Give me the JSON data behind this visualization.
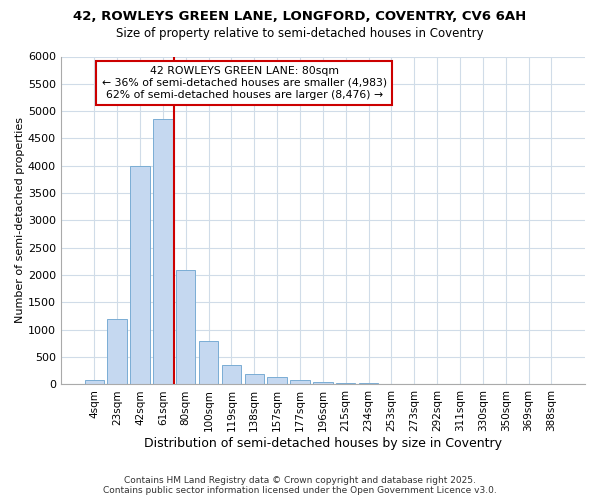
{
  "title_line1": "42, ROWLEYS GREEN LANE, LONGFORD, COVENTRY, CV6 6AH",
  "title_line2": "Size of property relative to semi-detached houses in Coventry",
  "xlabel": "Distribution of semi-detached houses by size in Coventry",
  "ylabel": "Number of semi-detached properties",
  "categories": [
    "4sqm",
    "23sqm",
    "42sqm",
    "61sqm",
    "80sqm",
    "100sqm",
    "119sqm",
    "138sqm",
    "157sqm",
    "177sqm",
    "196sqm",
    "215sqm",
    "234sqm",
    "253sqm",
    "273sqm",
    "292sqm",
    "311sqm",
    "330sqm",
    "350sqm",
    "369sqm",
    "388sqm"
  ],
  "values": [
    80,
    1200,
    4000,
    4850,
    2100,
    800,
    350,
    200,
    130,
    80,
    40,
    30,
    30,
    0,
    0,
    0,
    0,
    0,
    0,
    0,
    0
  ],
  "highlight_index": 4,
  "bar_color_normal": "#c5d8f0",
  "bar_edge_color": "#7aadd4",
  "highlight_line_color": "#cc0000",
  "annotation_text_line1": "42 ROWLEYS GREEN LANE: 80sqm",
  "annotation_text_line2": "← 36% of semi-detached houses are smaller (4,983)",
  "annotation_text_line3": "62% of semi-detached houses are larger (8,476) →",
  "annotation_box_edge_color": "#cc0000",
  "ylim": [
    0,
    6000
  ],
  "yticks": [
    0,
    500,
    1000,
    1500,
    2000,
    2500,
    3000,
    3500,
    4000,
    4500,
    5000,
    5500,
    6000
  ],
  "footer_line1": "Contains HM Land Registry data © Crown copyright and database right 2025.",
  "footer_line2": "Contains public sector information licensed under the Open Government Licence v3.0.",
  "background_color": "#ffffff",
  "plot_background_color": "#ffffff",
  "grid_color": "#d0dce8"
}
